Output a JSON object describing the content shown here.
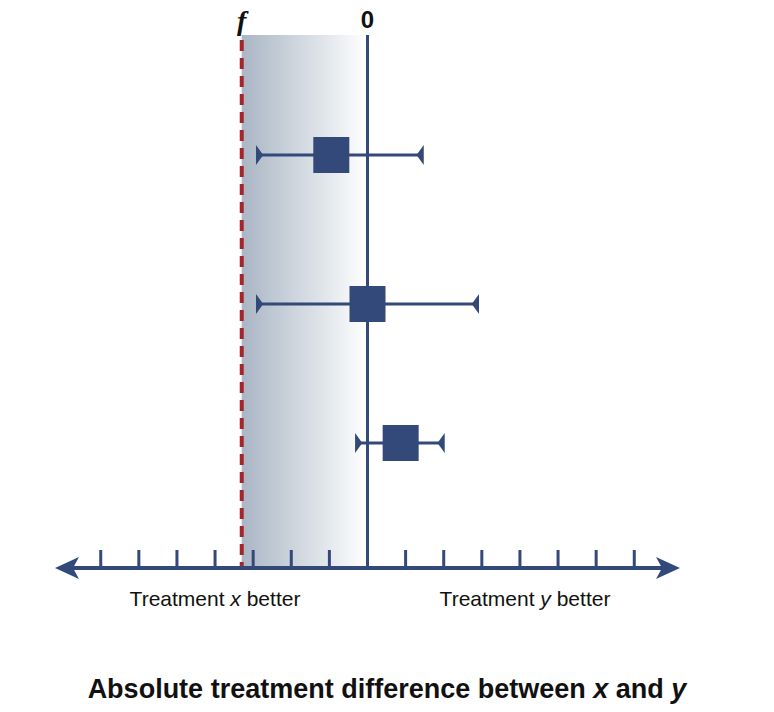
{
  "chart_data": {
    "type": "forest",
    "xlabel": "Absolute treatment difference between x and y",
    "xlim": [
      -8.2,
      8.2
    ],
    "xticks": [
      -7,
      -6,
      -5,
      -4,
      -3,
      -2,
      -1,
      0,
      1,
      2,
      3,
      4,
      5,
      6,
      7
    ],
    "tick_labels": false,
    "color": "#33497a",
    "values": [
      -0.95,
      0,
      0.87
    ],
    "lower": [
      -2.9,
      -2.9,
      -0.3
    ],
    "upper": [
      1.45,
      2.9,
      2.0
    ],
    "reference_line": {
      "value": 0,
      "label": "0"
    },
    "margin_line": {
      "value": -3.3,
      "label": "f",
      "color": "#a4262c"
    },
    "left_label": "Treatment x better",
    "right_label": "Treatment y better"
  }
}
